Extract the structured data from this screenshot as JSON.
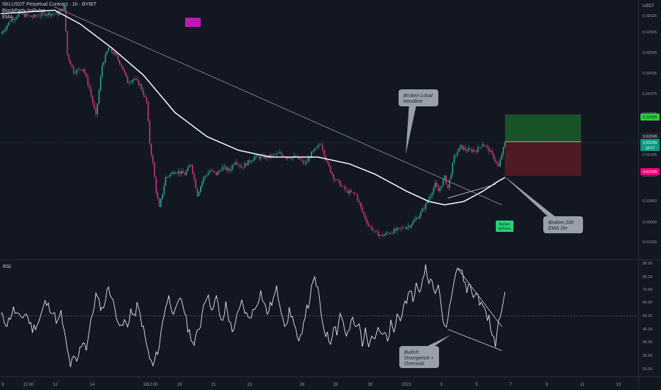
{
  "header": {
    "symbol": "SKLUSDT Perpetual Contract",
    "interval": "1h",
    "exchange": "BYBIT",
    "indicators": [
      "BlockParty ImPulse",
      "EMA"
    ]
  },
  "chart_data": [
    {
      "type": "candlestick",
      "pane": "price",
      "currency_label": "USDT",
      "y_ticks": [
        "0.02625",
        "0.02565",
        "0.02505",
        "0.02435",
        "0.02375",
        "0.02315",
        "0.02245",
        "0.02185",
        "0.02125",
        "0.02060",
        "0.02000",
        "0.01935"
      ],
      "ylim": [
        0.019,
        0.0266
      ],
      "x_ticks": [
        "9",
        "12:00",
        "12",
        "14",
        "16",
        "12:00",
        "19",
        "21",
        "23",
        "26",
        "28",
        "30",
        "2023",
        "3",
        "5",
        "7",
        "9",
        "11",
        "13"
      ],
      "price_labels": {
        "take_profit": "0.02325",
        "current": "0.02245",
        "current_alt": "0.02235",
        "countdown": "18:07",
        "stop_loss": "0.02145"
      },
      "price_path": [
        [
          0,
          0.0256
        ],
        [
          3,
          0.026
        ],
        [
          6,
          0.0262
        ],
        [
          10,
          0.0261
        ],
        [
          14,
          0.0262
        ],
        [
          18,
          0.0262
        ],
        [
          20,
          0.0264
        ],
        [
          21,
          0.025
        ],
        [
          23,
          0.0245
        ],
        [
          26,
          0.0246
        ],
        [
          28,
          0.024
        ],
        [
          30,
          0.0232
        ],
        [
          32,
          0.0247
        ],
        [
          34,
          0.0252
        ],
        [
          36,
          0.025
        ],
        [
          38,
          0.0247
        ],
        [
          40,
          0.0242
        ],
        [
          42,
          0.0243
        ],
        [
          44,
          0.0241
        ],
        [
          46,
          0.0236
        ],
        [
          47,
          0.0224
        ],
        [
          48,
          0.0218
        ],
        [
          49,
          0.021
        ],
        [
          50,
          0.0205
        ],
        [
          52,
          0.0214
        ],
        [
          55,
          0.0216
        ],
        [
          58,
          0.0215
        ],
        [
          60,
          0.0218
        ],
        [
          62,
          0.0209
        ],
        [
          64,
          0.0214
        ],
        [
          66,
          0.0216
        ],
        [
          68,
          0.0215
        ],
        [
          70,
          0.0217
        ],
        [
          72,
          0.0216
        ],
        [
          74,
          0.0219
        ],
        [
          76,
          0.0217
        ],
        [
          80,
          0.022
        ],
        [
          84,
          0.022
        ],
        [
          88,
          0.0221
        ],
        [
          90,
          0.022
        ],
        [
          93,
          0.022
        ],
        [
          96,
          0.0218
        ],
        [
          98,
          0.0221
        ],
        [
          101,
          0.0224
        ],
        [
          103,
          0.0218
        ],
        [
          105,
          0.0214
        ],
        [
          107,
          0.0212
        ],
        [
          109,
          0.021
        ],
        [
          112,
          0.0209
        ],
        [
          114,
          0.0204
        ],
        [
          116,
          0.02
        ],
        [
          118,
          0.0198
        ],
        [
          120,
          0.0197
        ],
        [
          123,
          0.0198
        ],
        [
          126,
          0.0199
        ],
        [
          129,
          0.02
        ],
        [
          132,
          0.0203
        ],
        [
          134,
          0.0206
        ],
        [
          136,
          0.021
        ],
        [
          137,
          0.0212
        ],
        [
          138,
          0.021
        ],
        [
          140,
          0.0214
        ],
        [
          141,
          0.0211
        ],
        [
          143,
          0.022
        ],
        [
          145,
          0.0223
        ],
        [
          147,
          0.0222
        ],
        [
          150,
          0.0222
        ],
        [
          152,
          0.0224
        ],
        [
          154,
          0.0222
        ],
        [
          156,
          0.0219
        ],
        [
          157,
          0.0217
        ],
        [
          158,
          0.0221
        ],
        [
          159,
          0.0224
        ]
      ],
      "ema_200": [
        [
          0,
          0.0262
        ],
        [
          17,
          0.0263
        ],
        [
          25,
          0.0259
        ],
        [
          35,
          0.0252
        ],
        [
          45,
          0.0244
        ],
        [
          55,
          0.0233
        ],
        [
          65,
          0.0226
        ],
        [
          75,
          0.0222
        ],
        [
          85,
          0.022
        ],
        [
          100,
          0.022
        ],
        [
          110,
          0.0218
        ],
        [
          118,
          0.0215
        ],
        [
          128,
          0.021
        ],
        [
          135,
          0.0207
        ],
        [
          140,
          0.0206
        ],
        [
          146,
          0.0207
        ],
        [
          152,
          0.021
        ],
        [
          157,
          0.0213
        ],
        [
          159,
          0.0214
        ]
      ],
      "trendline": [
        [
          17,
          0.0264
        ],
        [
          158,
          0.0206
        ]
      ],
      "support_line": [
        [
          141,
          0.0208
        ],
        [
          156,
          0.0212
        ]
      ],
      "position": {
        "start": 159,
        "end": 183,
        "entry": 0.02245,
        "take_profit": 0.02325,
        "stop_loss": 0.02145
      },
      "annotations": [
        {
          "text": [
            "Broken Local",
            "trendline"
          ]
        },
        {
          "text": [
            "Broken 200",
            "EMA 1hr"
          ]
        },
        {
          "text": [
            "Bullish",
            "ImPulse"
          ],
          "kind": "signal"
        }
      ]
    },
    {
      "type": "line",
      "pane": "rsi",
      "title": "RSI",
      "y_ticks": [
        "90.00",
        "80.00",
        "70.00",
        "60.00",
        "50.00",
        "40.00",
        "30.00",
        "20.00",
        "10.00"
      ],
      "ylim": [
        5,
        92
      ],
      "mid_level": 50,
      "values": [
        [
          0,
          51
        ],
        [
          2,
          44
        ],
        [
          4,
          55
        ],
        [
          6,
          48
        ],
        [
          8,
          52
        ],
        [
          10,
          40
        ],
        [
          12,
          46
        ],
        [
          14,
          60
        ],
        [
          16,
          55
        ],
        [
          18,
          45
        ],
        [
          19,
          52
        ],
        [
          20,
          38
        ],
        [
          21,
          24
        ],
        [
          22,
          13
        ],
        [
          23,
          18
        ],
        [
          24,
          15
        ],
        [
          25,
          25
        ],
        [
          26,
          32
        ],
        [
          27,
          26
        ],
        [
          28,
          40
        ],
        [
          29,
          52
        ],
        [
          30,
          66
        ],
        [
          31,
          60
        ],
        [
          32,
          55
        ],
        [
          33,
          62
        ],
        [
          34,
          73
        ],
        [
          35,
          64
        ],
        [
          36,
          55
        ],
        [
          37,
          48
        ],
        [
          38,
          40
        ],
        [
          39,
          46
        ],
        [
          40,
          42
        ],
        [
          41,
          55
        ],
        [
          42,
          48
        ],
        [
          43,
          58
        ],
        [
          44,
          50
        ],
        [
          45,
          40
        ],
        [
          46,
          28
        ],
        [
          47,
          18
        ],
        [
          48,
          12
        ],
        [
          49,
          20
        ],
        [
          50,
          28
        ],
        [
          51,
          45
        ],
        [
          52,
          58
        ],
        [
          53,
          64
        ],
        [
          54,
          56
        ],
        [
          55,
          52
        ],
        [
          56,
          59
        ],
        [
          57,
          63
        ],
        [
          58,
          53
        ],
        [
          59,
          41
        ],
        [
          60,
          35
        ],
        [
          61,
          27
        ],
        [
          62,
          38
        ],
        [
          63,
          44
        ],
        [
          64,
          60
        ],
        [
          65,
          66
        ],
        [
          66,
          60
        ],
        [
          67,
          55
        ],
        [
          68,
          64
        ],
        [
          69,
          52
        ],
        [
          70,
          44
        ],
        [
          71,
          60
        ],
        [
          72,
          48
        ],
        [
          73,
          38
        ],
        [
          74,
          46
        ],
        [
          75,
          52
        ],
        [
          76,
          60
        ],
        [
          77,
          54
        ],
        [
          78,
          48
        ],
        [
          80,
          55
        ],
        [
          82,
          68
        ],
        [
          83,
          60
        ],
        [
          84,
          52
        ],
        [
          86,
          63
        ],
        [
          87,
          70
        ],
        [
          88,
          60
        ],
        [
          89,
          50
        ],
        [
          90,
          40
        ],
        [
          91,
          55
        ],
        [
          92,
          49
        ],
        [
          93,
          38
        ],
        [
          94,
          28
        ],
        [
          95,
          40
        ],
        [
          96,
          52
        ],
        [
          97,
          58
        ],
        [
          98,
          70
        ],
        [
          99,
          78
        ],
        [
          100,
          70
        ],
        [
          101,
          52
        ],
        [
          102,
          40
        ],
        [
          103,
          35
        ],
        [
          104,
          30
        ],
        [
          105,
          44
        ],
        [
          106,
          38
        ],
        [
          107,
          52
        ],
        [
          108,
          46
        ],
        [
          109,
          34
        ],
        [
          110,
          40
        ],
        [
          111,
          48
        ],
        [
          112,
          40
        ],
        [
          113,
          44
        ],
        [
          114,
          30
        ],
        [
          115,
          38
        ],
        [
          116,
          30
        ],
        [
          117,
          38
        ],
        [
          118,
          33
        ],
        [
          119,
          43
        ],
        [
          120,
          34
        ],
        [
          121,
          37
        ],
        [
          122,
          30
        ],
        [
          123,
          44
        ],
        [
          124,
          36
        ],
        [
          125,
          52
        ],
        [
          126,
          46
        ],
        [
          127,
          60
        ],
        [
          128,
          56
        ],
        [
          129,
          72
        ],
        [
          130,
          62
        ],
        [
          131,
          74
        ],
        [
          132,
          66
        ],
        [
          133,
          78
        ],
        [
          134,
          87
        ],
        [
          135,
          78
        ],
        [
          136,
          74
        ],
        [
          137,
          66
        ],
        [
          138,
          76
        ],
        [
          139,
          52
        ],
        [
          140,
          42
        ],
        [
          141,
          48
        ],
        [
          142,
          66
        ],
        [
          143,
          80
        ],
        [
          144,
          87
        ],
        [
          145,
          85
        ],
        [
          146,
          78
        ],
        [
          147,
          70
        ],
        [
          148,
          74
        ],
        [
          149,
          64
        ],
        [
          150,
          70
        ],
        [
          151,
          58
        ],
        [
          152,
          60
        ],
        [
          153,
          52
        ],
        [
          154,
          48
        ],
        [
          155,
          34
        ],
        [
          156,
          30
        ],
        [
          157,
          44
        ],
        [
          158,
          56
        ],
        [
          159,
          67
        ]
      ],
      "upper_trendline": [
        [
          144,
          86
        ],
        [
          158,
          42
        ]
      ],
      "lower_trendline": [
        [
          141,
          40
        ],
        [
          158,
          24
        ]
      ],
      "annotations": [
        {
          "text": [
            "Bullish",
            "Divergence +",
            "Oversold"
          ]
        }
      ]
    }
  ]
}
